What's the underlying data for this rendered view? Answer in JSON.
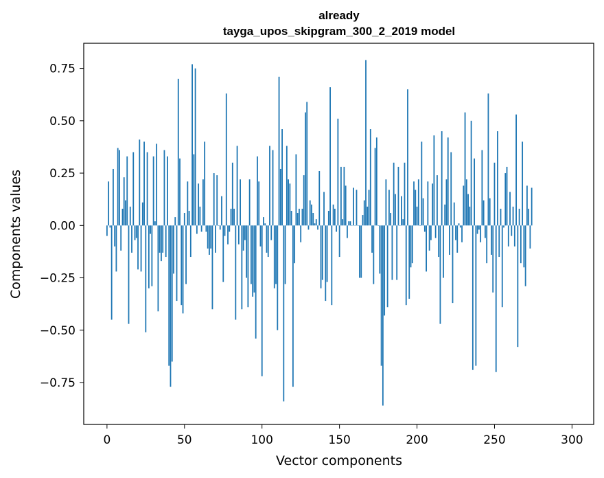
{
  "chart_data": {
    "type": "bar",
    "title": "already\ntayga_upos_skipgram_300_2_2019 model",
    "xlabel": "Vector components",
    "ylabel": "Components values",
    "xlim": [
      -15,
      314
    ],
    "ylim": [
      -0.95,
      0.87
    ],
    "xticks": [
      0,
      50,
      100,
      150,
      200,
      250,
      300
    ],
    "yticks": [
      -0.75,
      -0.5,
      -0.25,
      0.0,
      0.25,
      0.5,
      0.75
    ],
    "ytick_labels": [
      "−0.75",
      "−0.50",
      "−0.25",
      "0.00",
      "0.25",
      "0.50",
      "0.75"
    ],
    "grid": false,
    "color": "#1f77b4",
    "x_start": 0,
    "values": [
      -0.05,
      0.21,
      -0.01,
      -0.45,
      0.27,
      -0.1,
      -0.22,
      0.37,
      0.36,
      -0.12,
      0.08,
      0.23,
      0.12,
      0.33,
      -0.47,
      0.09,
      -0.13,
      0.35,
      -0.07,
      -0.06,
      -0.21,
      0.41,
      -0.22,
      0.11,
      0.4,
      -0.51,
      0.35,
      -0.3,
      -0.04,
      -0.29,
      0.33,
      0.02,
      0.39,
      -0.41,
      -0.13,
      -0.17,
      -0.13,
      0.36,
      -0.15,
      0.33,
      -0.67,
      -0.77,
      -0.65,
      -0.23,
      0.04,
      -0.36,
      0.7,
      0.32,
      -0.38,
      -0.42,
      0.06,
      -0.28,
      0.21,
      0.07,
      -0.15,
      0.77,
      0.34,
      0.75,
      -0.04,
      0.2,
      0.09,
      -0.03,
      0.22,
      0.4,
      -0.03,
      -0.11,
      -0.14,
      -0.11,
      -0.4,
      0.25,
      -0.13,
      0.24,
      0.0,
      -0.02,
      0.14,
      -0.27,
      -0.05,
      0.63,
      -0.09,
      -0.03,
      0.08,
      0.3,
      0.08,
      -0.45,
      0.38,
      -0.09,
      0.22,
      -0.4,
      -0.12,
      -0.07,
      -0.25,
      -0.39,
      0.22,
      -0.28,
      -0.34,
      -0.32,
      -0.54,
      0.33,
      0.21,
      -0.1,
      -0.72,
      0.04,
      0.01,
      -0.13,
      -0.15,
      0.38,
      -0.07,
      0.36,
      -0.3,
      -0.28,
      -0.5,
      0.71,
      0.27,
      0.46,
      -0.84,
      -0.28,
      0.38,
      0.22,
      0.2,
      0.07,
      -0.77,
      -0.18,
      0.34,
      0.06,
      0.08,
      -0.08,
      0.08,
      0.24,
      0.54,
      0.59,
      -0.02,
      0.12,
      0.1,
      0.06,
      0.01,
      0.03,
      -0.02,
      0.26,
      -0.3,
      -0.26,
      0.16,
      -0.36,
      -0.27,
      0.07,
      0.66,
      -0.38,
      0.1,
      0.08,
      -0.03,
      0.51,
      -0.15,
      0.28,
      0.03,
      0.28,
      0.19,
      -0.06,
      0.02,
      0.02,
      0.0,
      0.18,
      0.0,
      0.17,
      0.0,
      -0.25,
      -0.25,
      0.05,
      0.12,
      0.79,
      0.09,
      0.17,
      0.46,
      -0.13,
      -0.28,
      0.37,
      0.42,
      0.0,
      -0.23,
      -0.67,
      -0.86,
      -0.43,
      0.22,
      -0.39,
      0.17,
      0.06,
      -0.26,
      0.3,
      0.15,
      -0.26,
      0.28,
      0.0,
      0.14,
      0.03,
      0.3,
      -0.38,
      0.65,
      -0.35,
      -0.2,
      -0.18,
      0.21,
      0.17,
      0.09,
      0.22,
      0.0,
      0.4,
      0.13,
      -0.03,
      -0.22,
      0.21,
      -0.12,
      -0.07,
      0.2,
      0.43,
      -0.06,
      0.24,
      -0.15,
      -0.47,
      0.45,
      -0.25,
      0.1,
      0.22,
      0.42,
      -0.14,
      0.35,
      -0.37,
      0.11,
      -0.07,
      -0.13,
      0.01,
      -0.01,
      -0.08,
      0.19,
      0.54,
      0.22,
      0.15,
      0.09,
      0.5,
      -0.69,
      0.32,
      -0.67,
      -0.04,
      -0.02,
      -0.08,
      0.36,
      0.12,
      -0.06,
      -0.18,
      0.63,
      0.13,
      -0.14,
      -0.32,
      0.3,
      -0.7,
      0.45,
      -0.15,
      0.08,
      -0.39,
      -0.01,
      0.25,
      0.28,
      -0.1,
      0.16,
      -0.05,
      0.09,
      -0.1,
      0.53,
      -0.58,
      0.08,
      -0.18,
      0.4,
      -0.2,
      -0.29,
      0.19,
      0.08,
      -0.11,
      0.18
    ]
  }
}
